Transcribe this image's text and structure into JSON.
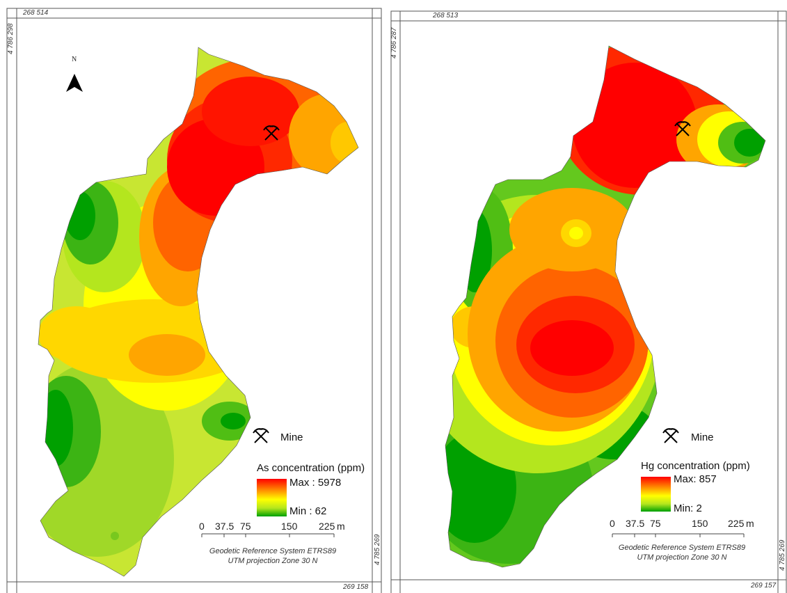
{
  "maps": [
    {
      "id": "as",
      "coord_top_x": "268 514",
      "coord_left_y": "4 786 298",
      "coord_right_y": "4 785 269",
      "coord_bottom_x": "269 158",
      "north_label": "N",
      "legend": {
        "title": "As concentration (ppm)",
        "max_label": "Max : 5978",
        "min_label": "Min : 62",
        "mine_label": "Mine"
      },
      "scale": {
        "labels": [
          "0",
          "37.5",
          "75",
          "150",
          "225"
        ],
        "unit": "m"
      },
      "crs": [
        "Geodetic Reference System ETRS89",
        "UTM projection Zone 30 N"
      ]
    },
    {
      "id": "hg",
      "coord_top_x": "268 513",
      "coord_left_y": "4 786 287",
      "coord_right_y": "4 785 269",
      "coord_bottom_x": "269 157",
      "legend": {
        "title": "Hg concentration (ppm)",
        "max_label": "Max: 857",
        "min_label": "Min: 2",
        "mine_label": "Mine"
      },
      "scale": {
        "labels": [
          "0",
          "37.5",
          "75",
          "150",
          "225"
        ],
        "unit": "m"
      },
      "crs": [
        "Geodetic Reference System ETRS89",
        "UTM projection Zone 30 N"
      ]
    }
  ],
  "colors": {
    "max": "#ff0000",
    "high": "#ff8c00",
    "mid": "#ffff00",
    "low": "#b4e61e",
    "min": "#00a000",
    "frame": "#555555"
  },
  "icons": {
    "mine": "pickaxe-hammer-icon",
    "north": "north-arrow-icon"
  }
}
